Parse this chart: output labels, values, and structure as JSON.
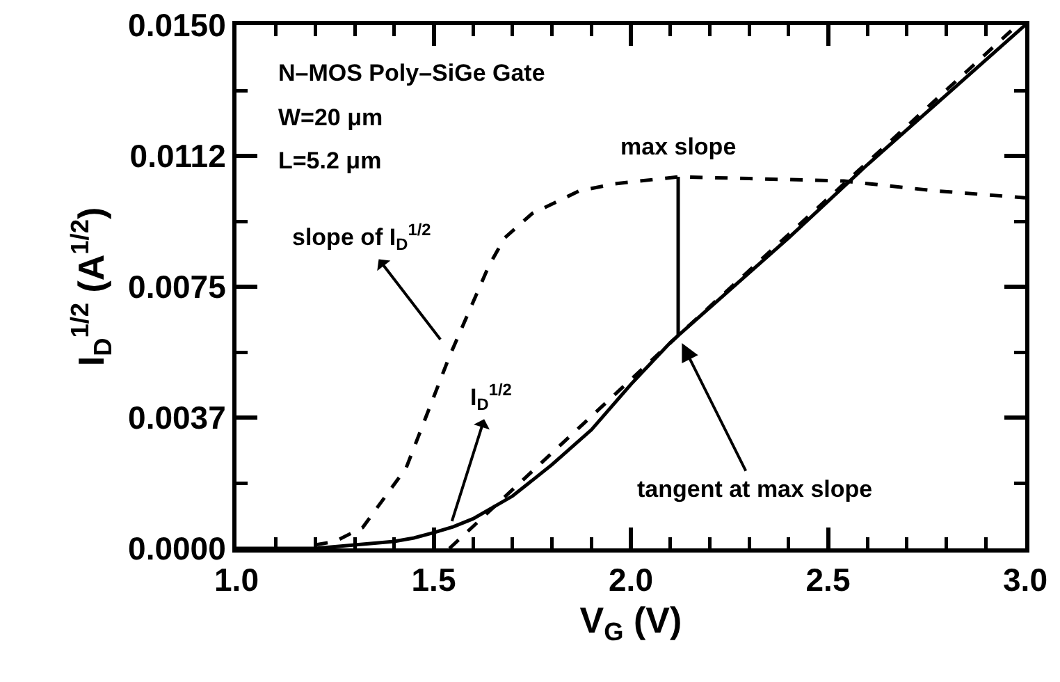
{
  "chart_data": {
    "type": "line",
    "xlabel": "V$_{G}$ (V)",
    "ylabel": "I$_{D}$$^{1/2}$ (A$^{1/2}$)",
    "xlim": [
      1.0,
      3.0
    ],
    "xticks": [
      {
        "value": 1,
        "label": "1.0"
      },
      {
        "value": 1.1,
        "label": null
      },
      {
        "value": 1.2,
        "label": null
      },
      {
        "value": 1.3,
        "label": null
      },
      {
        "value": 1.4,
        "label": null
      },
      1.5,
      {
        "value": 1.6,
        "label": null
      },
      {
        "value": 1.7,
        "label": null
      },
      {
        "value": 1.8,
        "label": null
      },
      {
        "value": 1.9,
        "label": null
      },
      {
        "value": 2,
        "label": "2.0"
      },
      {
        "value": 2.1,
        "label": null
      },
      {
        "value": 2.2,
        "label": null
      },
      {
        "value": 2.3,
        "label": null
      },
      {
        "value": 2.4,
        "label": null
      },
      2.5,
      {
        "value": 2.6,
        "label": null
      },
      {
        "value": 2.7,
        "label": null
      },
      {
        "value": 2.8,
        "label": null
      },
      {
        "value": 2.9,
        "label": null
      },
      {
        "value": 3,
        "label": "3.0"
      }
    ],
    "ylim": [
      0,
      0.015
    ],
    "yticks": [
      {
        "value": 0,
        "label": "0.0000"
      },
      {
        "value": 0.001875,
        "label": null
      },
      {
        "value": 0.00375,
        "label": "0.0037"
      },
      {
        "value": 0.005625,
        "label": null
      },
      {
        "value": 0.0075,
        "label": "0.0075"
      },
      {
        "value": 0.009375,
        "label": null
      },
      {
        "value": 0.01125,
        "label": "0.0112"
      },
      {
        "value": 0.013125,
        "label": null
      },
      {
        "value": 0.015,
        "label": "0.0150"
      }
    ],
    "series": [
      {
        "color": "#000000",
        "line_style": "solid",
        "x": [
          1.0,
          1.2,
          1.3,
          1.4,
          1.45,
          1.5,
          1.55,
          1.6,
          1.7,
          1.8,
          1.9,
          2.0,
          2.1,
          2.2,
          2.4,
          2.6,
          2.8,
          3.0
        ],
        "values": [
          0,
          0,
          0.0001,
          0.0002,
          0.0003,
          0.00045,
          0.00062,
          0.00085,
          0.0015,
          0.0024,
          0.0034,
          0.0047,
          0.0059,
          0.0069,
          0.0089,
          0.011,
          0.013,
          0.015
        ]
      },
      {
        "color": "#000000",
        "line_style": "dashed",
        "x": [
          1.2,
          1.25,
          1.32,
          1.43,
          1.54,
          1.64,
          1.68,
          1.75,
          1.87,
          1.96,
          2.12,
          2.3,
          2.54,
          2.77,
          3.0
        ],
        "values": [
          0.0001,
          0.0002,
          0.0006,
          0.0023,
          0.0055,
          0.0081,
          0.0089,
          0.0096,
          0.01025,
          0.01045,
          0.01065,
          0.0106,
          0.01053,
          0.01025,
          0.01005
        ]
      },
      {
        "color": "#000000",
        "line_style": "dashed",
        "x": [
          1.54,
          2.12,
          2.98
        ],
        "values": [
          0,
          0.0061,
          0.015
        ]
      },
      {
        "color": "#000000",
        "line_style": "solid",
        "x": [
          2.12,
          2.12
        ],
        "values": [
          0.0061,
          0.01065
        ]
      }
    ],
    "annotations": [
      "N–MOS Poly–SiGe Gate",
      "W=20 μm",
      "L=5.2 μm",
      {
        "text": "slope of I$_{D}$$^{1/2}$",
        "x": 1.53,
        "y": 0.0058
      },
      {
        "text": "I$_{D}$$^{1/2}$",
        "x": 1.54,
        "y": 0.00055
      },
      {
        "text": "tangent at max slope",
        "x": 2.12,
        "y": 0.0061
      },
      {
        "text": "max slope",
        "x": 2.12,
        "y": 0.01065
      }
    ]
  }
}
